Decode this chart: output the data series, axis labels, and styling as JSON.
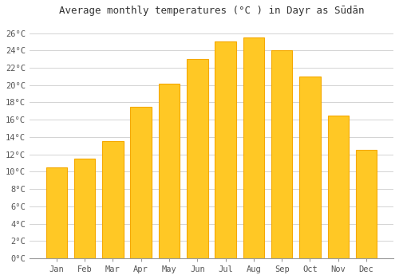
{
  "months": [
    "Jan",
    "Feb",
    "Mar",
    "Apr",
    "May",
    "Jun",
    "Jul",
    "Aug",
    "Sep",
    "Oct",
    "Nov",
    "Dec"
  ],
  "temperatures": [
    10.5,
    11.5,
    13.5,
    17.5,
    20.2,
    23.0,
    25.0,
    25.5,
    24.0,
    21.0,
    16.5,
    12.5
  ],
  "bar_color_center": "#FFC825",
  "bar_color_edge": "#F5A800",
  "background_color": "#FFFFFF",
  "grid_color": "#CCCCCC",
  "title": "Average monthly temperatures (°C ) in Dayr as Sūdān",
  "title_fontsize": 9,
  "tick_label_fontsize": 7.5,
  "ylim": [
    0,
    27.5
  ],
  "yticks": [
    0,
    2,
    4,
    6,
    8,
    10,
    12,
    14,
    16,
    18,
    20,
    22,
    24,
    26
  ],
  "ytick_labels": [
    "0°C",
    "2°C",
    "4°C",
    "6°C",
    "8°C",
    "10°C",
    "12°C",
    "14°C",
    "16°C",
    "18°C",
    "20°C",
    "22°C",
    "24°C",
    "26°C"
  ]
}
